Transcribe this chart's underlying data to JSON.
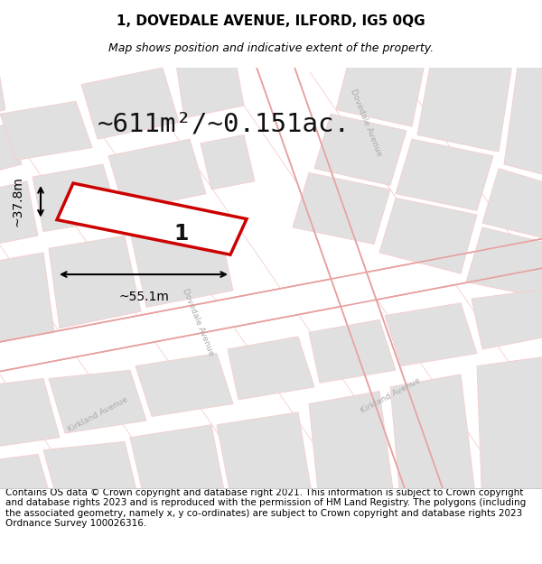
{
  "title_line1": "1, DOVEDALE AVENUE, ILFORD, IG5 0QG",
  "title_line2": "Map shows position and indicative extent of the property.",
  "area_text": "~611m²/~0.151ac.",
  "width_label": "~55.1m",
  "height_label": "~37.8m",
  "property_number": "1",
  "footer_text": "Contains OS data © Crown copyright and database right 2021. This information is subject to Crown copyright and database rights 2023 and is reproduced with the permission of HM Land Registry. The polygons (including the associated geometry, namely x, y co-ordinates) are subject to Crown copyright and database rights 2023 Ordnance Survey 100026316.",
  "bg_color": "#f5f5f5",
  "map_bg": "#f0f0f0",
  "road_color_light": "#f0c0c0",
  "road_color_medium": "#e8a0a0",
  "block_color": "#e0e0e0",
  "block_outline": "#f5d0d0",
  "highlight_color": "#cc0000",
  "title_fontsize": 11,
  "subtitle_fontsize": 9,
  "area_fontsize": 22,
  "label_fontsize": 10,
  "footer_fontsize": 7.5
}
